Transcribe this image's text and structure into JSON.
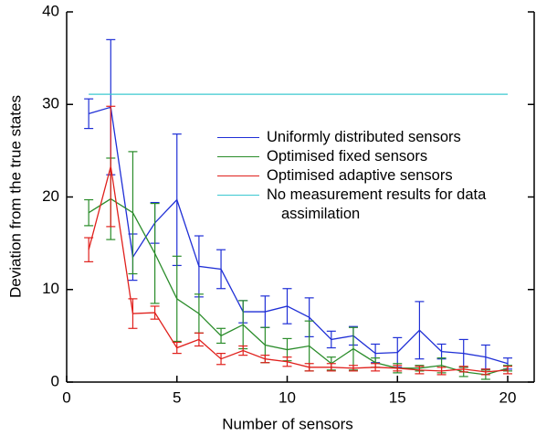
{
  "chart_data": {
    "type": "line",
    "x_label": "Number of sensors",
    "y_label": "Deviation from the true states",
    "x": [
      1,
      2,
      3,
      4,
      5,
      6,
      7,
      8,
      9,
      10,
      11,
      12,
      13,
      14,
      15,
      16,
      17,
      18,
      19,
      20
    ],
    "xlim": [
      0,
      21.2
    ],
    "ylim": [
      0,
      40
    ],
    "xticks": [
      0,
      5,
      10,
      15,
      20
    ],
    "yticks": [
      0,
      10,
      20,
      30,
      40
    ],
    "series": [
      {
        "name": "Uniformly distributed sensors",
        "color": "#1f2fd6",
        "values": [
          29.0,
          29.7,
          13.5,
          17.2,
          19.7,
          12.5,
          12.2,
          7.6,
          7.6,
          8.2,
          7.0,
          4.6,
          5.0,
          3.1,
          3.2,
          5.6,
          3.3,
          3.1,
          2.7,
          2.0
        ],
        "errors": [
          1.6,
          7.3,
          2.5,
          2.2,
          7.1,
          3.3,
          2.1,
          1.2,
          1.7,
          1.9,
          2.1,
          0.9,
          1.0,
          1.0,
          1.6,
          3.1,
          0.8,
          1.5,
          1.3,
          0.6
        ]
      },
      {
        "name": "Optimised fixed sensors",
        "color": "#2a8c2a",
        "values": [
          18.3,
          19.8,
          18.3,
          13.9,
          9.0,
          7.4,
          5.0,
          6.2,
          4.0,
          3.5,
          3.9,
          2.0,
          3.6,
          2.1,
          1.5,
          1.5,
          1.8,
          1.1,
          0.8,
          1.5
        ],
        "errors": [
          1.4,
          4.4,
          6.6,
          5.4,
          4.6,
          2.1,
          0.8,
          2.6,
          1.9,
          1.2,
          2.7,
          0.7,
          2.3,
          0.5,
          0.5,
          0.3,
          0.8,
          0.5,
          0.5,
          0.3
        ]
      },
      {
        "name": "Optimised adaptive sensors",
        "color": "#e0201c",
        "values": [
          14.3,
          23.3,
          7.4,
          7.5,
          3.7,
          4.6,
          2.5,
          3.4,
          2.5,
          2.2,
          1.6,
          1.6,
          1.5,
          1.6,
          1.5,
          1.3,
          1.2,
          1.4,
          1.1,
          1.3
        ],
        "errors": [
          1.3,
          6.5,
          1.6,
          0.7,
          0.6,
          0.7,
          0.6,
          0.5,
          0.4,
          0.5,
          0.4,
          0.4,
          0.3,
          0.4,
          0.3,
          0.4,
          0.4,
          0.3,
          0.3,
          0.4
        ]
      },
      {
        "name": "No measurement results for data assimilation",
        "color": "#3cc8d0",
        "x": [
          1,
          20
        ],
        "values": [
          31.1,
          31.1
        ]
      }
    ]
  }
}
